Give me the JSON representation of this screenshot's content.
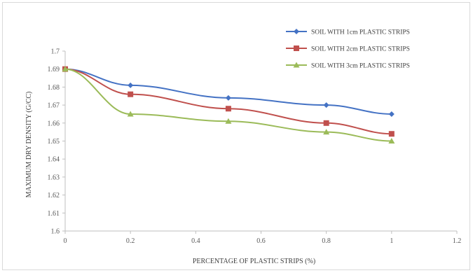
{
  "chart_data": {
    "type": "line",
    "title": "",
    "xlabel": "PERCENTAGE OF PLASTIC STRIPS (%)",
    "ylabel": "MAXIMUM DRY DENSITY (G/CC)",
    "xlim": [
      0,
      1.2
    ],
    "ylim": [
      1.6,
      1.7
    ],
    "xticks": [
      "0",
      "0.2",
      "0.4",
      "0.6",
      "0.8",
      "1",
      "1.2"
    ],
    "yticks": [
      "1.6",
      "1.61",
      "1.62",
      "1.63",
      "1.64",
      "1.65",
      "1.66",
      "1.67",
      "1.68",
      "1.69",
      "1.7"
    ],
    "grid": false,
    "legend_position": "top-right",
    "series": [
      {
        "name": "SOIL WITH 1cm PLASTIC STRIPS",
        "color": "#4472c4",
        "marker": "diamond",
        "x": [
          0,
          0.2,
          0.5,
          0.8,
          1
        ],
        "y": [
          1.69,
          1.681,
          1.674,
          1.67,
          1.665
        ]
      },
      {
        "name": "SOIL WITH 2cm PLASTIC STRIPS",
        "color": "#c0504d",
        "marker": "square",
        "x": [
          0,
          0.2,
          0.5,
          0.8,
          1
        ],
        "y": [
          1.69,
          1.676,
          1.668,
          1.66,
          1.654
        ]
      },
      {
        "name": "SOIL WITH 3cm PLASTIC STRIPS",
        "color": "#9bbb59",
        "marker": "triangle",
        "x": [
          0,
          0.2,
          0.5,
          0.8,
          1
        ],
        "y": [
          1.69,
          1.665,
          1.661,
          1.655,
          1.65
        ]
      }
    ]
  }
}
